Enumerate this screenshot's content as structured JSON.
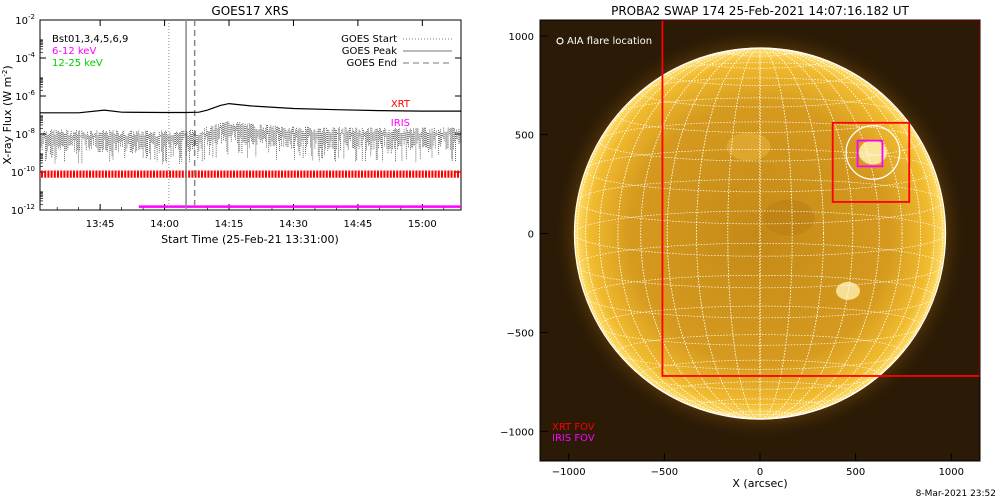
{
  "chart_data": [
    {
      "type": "line",
      "title": "GOES17 XRS",
      "xlabel": "Start Time (25-Feb-21 13:31:00)",
      "ylabel": "X-ray Flux (W m",
      "ylabel_exp": "-2",
      "y_scale": "log",
      "ylim": [
        1e-12,
        0.01
      ],
      "xlim": [
        "13:31:00",
        "15:09:00"
      ],
      "x_ticks": [
        "13:45",
        "14:00",
        "14:15",
        "14:30",
        "14:45",
        "15:00"
      ],
      "y_ticks": [
        {
          "base": "10",
          "exp": "-12"
        },
        {
          "base": "10",
          "exp": "-10"
        },
        {
          "base": "10",
          "exp": "-8"
        },
        {
          "base": "10",
          "exp": "-6"
        },
        {
          "base": "10",
          "exp": "-4"
        },
        {
          "base": "10",
          "exp": "-2"
        }
      ],
      "legend_left": [
        {
          "text": "Bst01,3,4,5,6,9",
          "color": "#000000"
        },
        {
          "text": "6-12 keV",
          "color": "#ff00ff"
        },
        {
          "text": "12-25 keV",
          "color": "#00cc00"
        }
      ],
      "legend_right": [
        {
          "text": "GOES Start",
          "style": "dotted"
        },
        {
          "text": "GOES Peak",
          "style": "solid"
        },
        {
          "text": "GOES End",
          "style": "dashed"
        }
      ],
      "goes_lines": {
        "start": "14:01",
        "peak": "14:05",
        "end": "14:07"
      },
      "series": [
        {
          "name": "",
          "color": "#000000",
          "x": [
            "13:31",
            "13:40",
            "13:46",
            "13:50",
            "14:00",
            "14:05",
            "14:08",
            "14:10",
            "14:13",
            "14:15",
            "14:20",
            "14:30",
            "14:40",
            "14:50",
            "15:00",
            "15:09"
          ],
          "values": [
            1.3e-07,
            1.3e-07,
            1.8e-07,
            1.4e-07,
            1.35e-07,
            1.35e-07,
            1.4e-07,
            1.8e-07,
            3.2e-07,
            4e-07,
            3e-07,
            2.2e-07,
            1.9e-07,
            1.7e-07,
            1.6e-07,
            1.6e-07
          ]
        },
        {
          "name": "",
          "color": "#000000",
          "style": "noisy",
          "x": [
            "13:31",
            "13:50",
            "14:00",
            "14:08",
            "14:12",
            "14:15",
            "14:20",
            "14:30",
            "14:45",
            "15:00",
            "15:09"
          ],
          "values": [
            8e-09,
            7e-09,
            7e-09,
            8e-09,
            1.5e-08,
            2.5e-08,
            1.6e-08,
            1.1e-08,
            1e-08,
            1e-08,
            1e-08
          ]
        }
      ],
      "bands": [
        {
          "label": "XRT",
          "color": "#ff0000",
          "x": [
            "13:31",
            "15:09"
          ],
          "y": [
            5e-11,
            1.2e-10
          ]
        },
        {
          "label": "IRIS",
          "color": "#ff00ff",
          "x": [
            "13:54",
            "15:09"
          ],
          "y": [
            1.5e-12,
            1.5e-12
          ]
        }
      ]
    },
    {
      "type": "scatter",
      "title": "PROBA2 SWAP 174 25-Feb-2021 14:07:16.182 UT",
      "xlabel": "X (arcsec)",
      "ylabel": "",
      "xlim": [
        -1150,
        1150
      ],
      "ylim": [
        -1150,
        1080
      ],
      "x_ticks": [
        -1000,
        -500,
        0,
        500,
        1000
      ],
      "y_ticks": [
        1000,
        500,
        0,
        -500,
        -1000
      ],
      "legend": [
        {
          "text": "AIA flare location",
          "marker": "circle",
          "color": "#ffffff"
        }
      ],
      "fov_labels": [
        {
          "text": "XRT FOV",
          "color": "#ff0000"
        },
        {
          "text": "IRIS FOV",
          "color": "#ff00ff"
        }
      ],
      "solar_radius": 970,
      "flare": {
        "x": 590,
        "y": 410
      },
      "boxes": [
        {
          "name": "XRT FOV large",
          "color": "#ff0000",
          "x": [
            -510,
            1150
          ],
          "y": [
            -720,
            1080
          ]
        },
        {
          "name": "XRT FOV small",
          "color": "#ff0000",
          "x": [
            380,
            780
          ],
          "y": [
            160,
            560
          ]
        },
        {
          "name": "IRIS FOV",
          "color": "#ff00ff",
          "x": [
            510,
            640
          ],
          "y": [
            340,
            470
          ]
        }
      ]
    }
  ],
  "footer": {
    "timestamp": "8-Mar-2021 23:52"
  }
}
